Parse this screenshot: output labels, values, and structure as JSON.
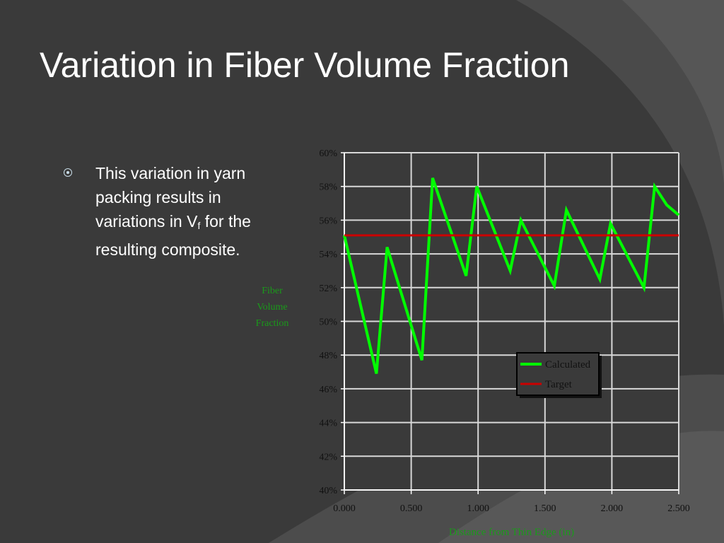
{
  "slide": {
    "title": "Variation in Fiber Volume Fraction",
    "bullet": {
      "text_before": "This variation in yarn packing results in variations in V",
      "subscript": "f",
      "text_after": " for the resulting composite."
    }
  },
  "colors": {
    "background": "#3a3a3a",
    "calculated": "#00ff00",
    "target": "#cc0000",
    "axis_label": "#1a9a1a"
  },
  "chart_data": {
    "type": "line",
    "ylabel": [
      "Fiber",
      "Volume",
      "Fraction"
    ],
    "xlabel": "Distance from Thin Edge (in)",
    "xlim": [
      0,
      2.5
    ],
    "ylim": [
      0.4,
      0.6
    ],
    "x_ticks": [
      "0.000",
      "0.500",
      "1.000",
      "1.500",
      "2.000",
      "2.500"
    ],
    "y_ticks": [
      "40%",
      "42%",
      "44%",
      "46%",
      "48%",
      "50%",
      "52%",
      "54%",
      "56%",
      "58%",
      "60%"
    ],
    "grid": true,
    "legend": "center-right",
    "series": [
      {
        "name": "Calculated",
        "color": "#00ff00",
        "x": [
          0.0,
          0.24,
          0.32,
          0.58,
          0.66,
          0.91,
          0.99,
          1.24,
          1.32,
          1.57,
          1.66,
          1.91,
          1.99,
          2.24,
          2.32,
          2.41,
          2.5
        ],
        "y": [
          0.551,
          0.469,
          0.544,
          0.477,
          0.585,
          0.527,
          0.58,
          0.53,
          0.56,
          0.521,
          0.566,
          0.525,
          0.558,
          0.52,
          0.58,
          0.569,
          0.563
        ]
      },
      {
        "name": "Target",
        "color": "#cc0000",
        "x": [
          0.0,
          2.5
        ],
        "y": [
          0.551,
          0.551
        ]
      }
    ]
  }
}
